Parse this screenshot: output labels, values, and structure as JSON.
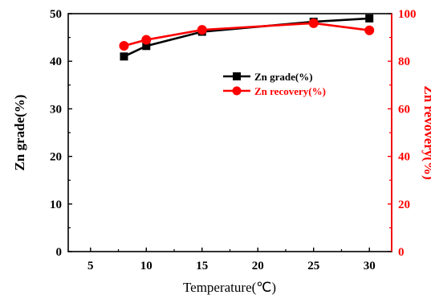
{
  "chart_data": {
    "type": "line",
    "title": "",
    "xlabel": "Temperature(℃)",
    "ylabel_left": "Zn grade(%)",
    "ylabel_right": "Zn revovery(%)",
    "xlim": [
      3,
      32
    ],
    "xticks": [
      5,
      10,
      15,
      20,
      25,
      30
    ],
    "ylim_left": [
      0,
      50
    ],
    "yticks_left": [
      0,
      10,
      20,
      30,
      40,
      50
    ],
    "ylim_right": [
      0,
      100
    ],
    "yticks_right": [
      0,
      20,
      40,
      60,
      80,
      100
    ],
    "x": [
      8,
      10,
      15,
      25,
      30
    ],
    "series": [
      {
        "name": "Zn grade(%)",
        "axis": "left",
        "color": "#000000",
        "marker": "square",
        "values": [
          41.0,
          43.2,
          46.2,
          48.3,
          49.0
        ]
      },
      {
        "name": "Zn recovery(%)",
        "axis": "right",
        "color": "#ff0000",
        "marker": "circle",
        "values": [
          86.5,
          89.0,
          93.2,
          96.0,
          93.0
        ]
      }
    ],
    "legend_position": "right",
    "right_axis_color": "#ff0000",
    "grid": false
  }
}
